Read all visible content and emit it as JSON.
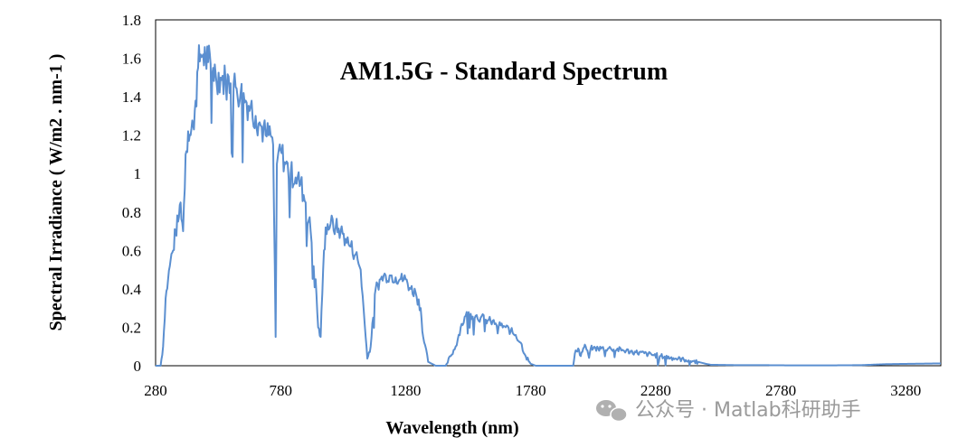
{
  "chart_data": {
    "type": "line",
    "title": "AM1.5G  - Standard Spectrum",
    "xlabel": "Wavelength (nm)",
    "ylabel": "Spectral Irradiance ( W/m2 . nm-1 )",
    "xlim": [
      280,
      3420
    ],
    "ylim": [
      0,
      1.8
    ],
    "x_ticks": [
      "280",
      "780",
      "1280",
      "1780",
      "2280",
      "2780",
      "3280"
    ],
    "y_ticks": [
      "0",
      "0.2",
      "0.4",
      "0.6",
      "0.8",
      "1",
      "1.2",
      "1.4",
      "1.6",
      "1.8"
    ],
    "line_color": "#5b8fd0",
    "series": [
      {
        "name": "AM1.5G",
        "x": [
          280,
          300,
          310,
          320,
          330,
          340,
          350,
          360,
          370,
          380,
          390,
          400,
          410,
          420,
          430,
          440,
          450,
          460,
          470,
          480,
          490,
          500,
          510,
          520,
          540,
          560,
          580,
          600,
          620,
          640,
          660,
          680,
          700,
          720,
          740,
          750,
          760,
          765,
          770,
          780,
          800,
          820,
          840,
          860,
          880,
          900,
          920,
          930,
          940,
          950,
          960,
          980,
          1000,
          1020,
          1040,
          1060,
          1080,
          1100,
          1120,
          1130,
          1140,
          1150,
          1160,
          1180,
          1200,
          1220,
          1240,
          1260,
          1280,
          1300,
          1320,
          1340,
          1350,
          1370,
          1400,
          1420,
          1440,
          1460,
          1480,
          1500,
          1520,
          1540,
          1560,
          1580,
          1600,
          1620,
          1640,
          1660,
          1680,
          1700,
          1720,
          1740,
          1760,
          1780,
          1800,
          1850,
          1900,
          1950,
          1960,
          1970,
          1980,
          1990,
          2000,
          2010,
          2020,
          2030,
          2050,
          2100,
          2150,
          2200,
          2250,
          2300,
          2350,
          2400,
          2450,
          2480,
          2500,
          2550,
          2600,
          2700,
          2800,
          2900,
          3000,
          3100,
          3200,
          3300,
          3420
        ],
        "values": [
          0,
          0,
          0.1,
          0.35,
          0.45,
          0.55,
          0.6,
          0.7,
          0.75,
          0.85,
          0.7,
          1.1,
          1.22,
          1.2,
          1.25,
          1.38,
          1.55,
          1.62,
          1.62,
          1.6,
          1.58,
          1.57,
          1.55,
          1.52,
          1.5,
          1.48,
          1.47,
          1.45,
          1.42,
          1.38,
          1.35,
          1.3,
          1.25,
          1.2,
          1.2,
          1.15,
          0.15,
          1.05,
          1.1,
          1.12,
          1.05,
          1.0,
          0.98,
          0.95,
          0.85,
          0.7,
          0.45,
          0.2,
          0.15,
          0.5,
          0.72,
          0.74,
          0.72,
          0.7,
          0.66,
          0.62,
          0.58,
          0.5,
          0.15,
          0.05,
          0.1,
          0.25,
          0.4,
          0.45,
          0.47,
          0.47,
          0.46,
          0.45,
          0.45,
          0.4,
          0.38,
          0.3,
          0.15,
          0.02,
          0,
          0,
          0,
          0.05,
          0.1,
          0.2,
          0.26,
          0.27,
          0.26,
          0.25,
          0.24,
          0.23,
          0.22,
          0.21,
          0.2,
          0.18,
          0.16,
          0.12,
          0.05,
          0.01,
          0,
          0,
          0,
          0,
          0.08,
          0.09,
          0.05,
          0.09,
          0.1,
          0.06,
          0.09,
          0.09,
          0.09,
          0.09,
          0.08,
          0.07,
          0.06,
          0.05,
          0.04,
          0.03,
          0.02,
          0.01,
          0.005,
          0.004,
          0.003,
          0.003,
          0.002,
          0.002,
          0.002,
          0.003,
          0.008,
          0.01,
          0.012
        ]
      }
    ]
  },
  "watermark": {
    "text": "公众号 · Matlab科研助手",
    "icon": "wechat-icon"
  }
}
